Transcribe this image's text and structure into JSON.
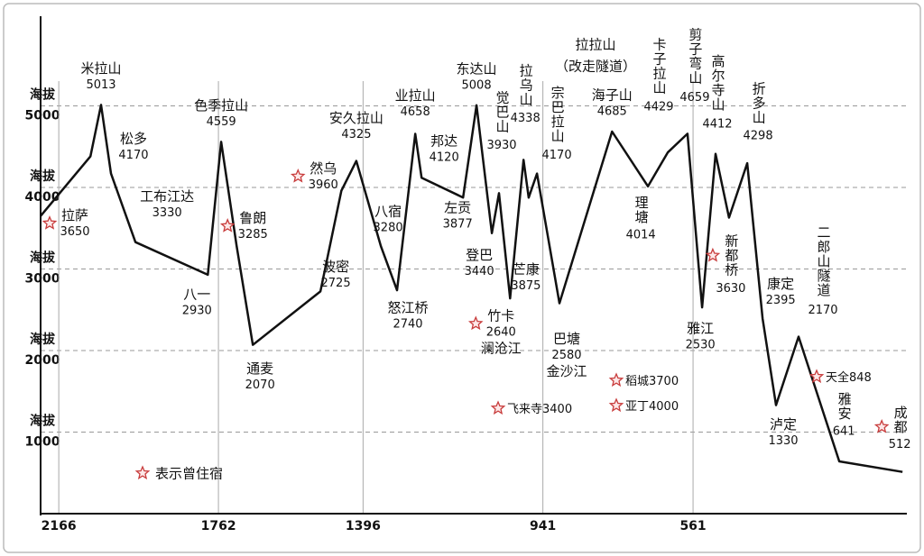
{
  "chart_data": {
    "type": "line",
    "x": [
      2212,
      2086,
      2059,
      2034,
      1972,
      1789,
      1755,
      1716,
      1675,
      1504,
      1451,
      1413,
      1351,
      1310,
      1264,
      1248,
      1143,
      1109,
      1070,
      1052,
      1024,
      990,
      977,
      956,
      899,
      766,
      675,
      625,
      575,
      538,
      504,
      470,
      424,
      385,
      351,
      294,
      191,
      31
    ],
    "values": [
      3650,
      4380,
      5013,
      4170,
      3330,
      2930,
      4559,
      3285,
      2070,
      2725,
      3960,
      4325,
      3280,
      2740,
      4658,
      4120,
      3877,
      5008,
      3440,
      3930,
      2640,
      4338,
      3875,
      4170,
      2580,
      4685,
      4014,
      4429,
      4659,
      2530,
      4412,
      3630,
      4298,
      2395,
      1330,
      2170,
      641,
      512
    ],
    "labels": [
      "拉萨",
      null,
      "米拉山",
      "松多",
      "工布江达",
      "八一",
      "色季拉山",
      "鲁朗",
      "通麦",
      "波密",
      "然乌",
      "安久拉山",
      "八宿",
      "怒江桥",
      "业拉山",
      "邦达",
      "左贡",
      "东达山",
      "登巴",
      "觉巴山",
      "竹卡",
      "拉乌山",
      "芒康",
      "宗巴拉山",
      "巴塘",
      "海子山",
      "理塘",
      "卡子拉山",
      "剪子弯山",
      "雅江",
      "高尔寺山",
      "新都桥",
      "折多山",
      "康定",
      "泸定",
      "二郎山隧道",
      "雅安",
      "成都"
    ],
    "river_labels": [
      null,
      null,
      null,
      null,
      null,
      null,
      null,
      null,
      null,
      null,
      null,
      null,
      null,
      null,
      null,
      null,
      null,
      null,
      null,
      null,
      "澜沧江",
      null,
      null,
      null,
      "金沙江",
      null,
      null,
      null,
      null,
      null,
      null,
      null,
      null,
      null,
      null,
      null,
      null,
      null
    ],
    "stayed": [
      true,
      false,
      false,
      false,
      false,
      false,
      false,
      true,
      false,
      false,
      true,
      false,
      false,
      false,
      false,
      false,
      false,
      false,
      false,
      false,
      true,
      false,
      false,
      false,
      false,
      false,
      false,
      false,
      false,
      false,
      false,
      true,
      false,
      false,
      false,
      false,
      false,
      true
    ],
    "side_notes": [
      {
        "name": "飞来寺",
        "elevation": 3400
      },
      {
        "name": "稻城",
        "elevation": 3700
      },
      {
        "name": "亚丁",
        "elevation": 4000
      },
      {
        "name": "天全",
        "elevation": 848
      }
    ],
    "annotation": [
      "拉拉山",
      "（改走隧道）"
    ],
    "legend_label": "表示曾住宿",
    "y_tick_prefix": "海拔",
    "xlim": [
      2212,
      20
    ],
    "xticks": [
      2166,
      1762,
      1396,
      941,
      561
    ],
    "ylim": [
      0,
      6100
    ],
    "yticks": [
      1000,
      2000,
      3000,
      4000,
      5000
    ],
    "grid": true,
    "color": "#111111",
    "star_color": "#c83c3c"
  }
}
